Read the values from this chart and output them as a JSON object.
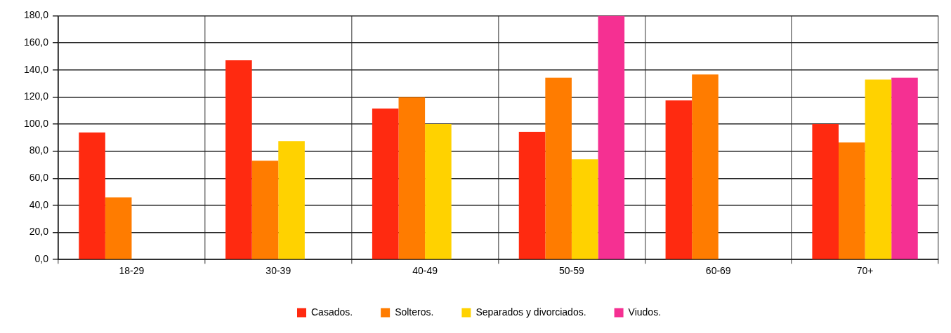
{
  "chart_data": {
    "type": "bar",
    "categories": [
      "18-29",
      "30-39",
      "40-49",
      "50-59",
      "60-69",
      "70+"
    ],
    "series": [
      {
        "name": "Casados.",
        "color": "#ff2a10",
        "values": [
          93.8,
          147.1,
          111.5,
          94.3,
          117.5,
          100
        ]
      },
      {
        "name": "Solteros.",
        "color": "#ff7c00",
        "values": [
          45.9,
          73,
          119.9,
          134.3,
          136.6,
          86.4
        ]
      },
      {
        "name": "Separados y divorciados.",
        "color": "#ffd200",
        "values": [
          null,
          87.4,
          100,
          74,
          null,
          132.9
        ]
      },
      {
        "name": "Viudos.",
        "color": "#f53092",
        "values": [
          null,
          null,
          null,
          180,
          null,
          134.3
        ]
      }
    ],
    "ylim": [
      0,
      180
    ],
    "yticks": [
      {
        "value": 0,
        "label": "0,0"
      },
      {
        "value": 20,
        "label": "20,0"
      },
      {
        "value": 40,
        "label": "40,0"
      },
      {
        "value": 60,
        "label": "60,0"
      },
      {
        "value": 80,
        "label": "80,0"
      },
      {
        "value": 100,
        "label": "100,0"
      },
      {
        "value": 120,
        "label": "120,0"
      },
      {
        "value": 140,
        "label": "140,0"
      },
      {
        "value": 160,
        "label": "160,0"
      },
      {
        "value": 180,
        "label": "180,0"
      }
    ],
    "grid": true,
    "legend": "bottom"
  }
}
